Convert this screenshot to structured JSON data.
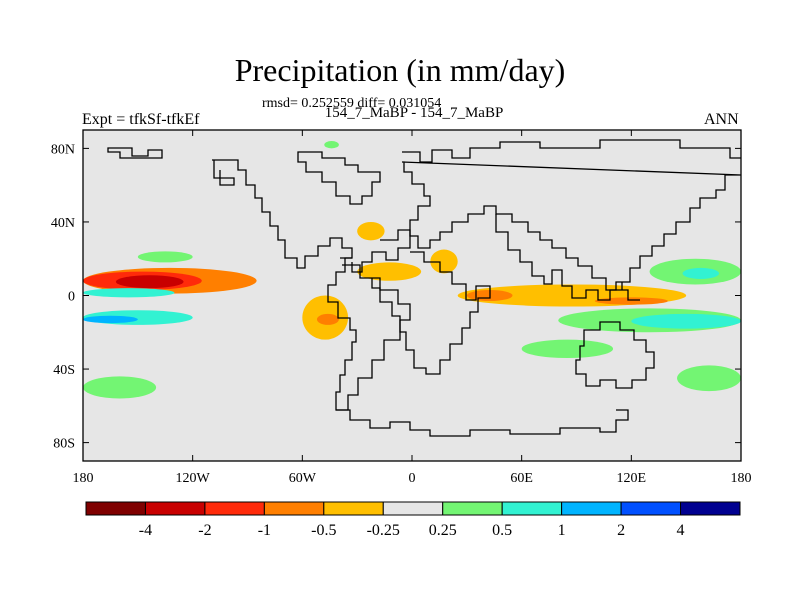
{
  "chart_data": {
    "type": "heatmap",
    "title": "Precipitation (in mm/day)",
    "subtitle": "rmsd= 0.252559 diff= 0.031054",
    "case_label": "154_7_MaBP - 154_7_MaBP",
    "experiment_label": "Expt = tfkSf-tfkEf",
    "season": "ANN",
    "rmsd": 0.252559,
    "diff": 0.031054,
    "x_ticks": [
      "180",
      "120W",
      "60W",
      "0",
      "60E",
      "120E",
      "180"
    ],
    "x_tick_values": [
      -180,
      -120,
      -60,
      0,
      60,
      120,
      180
    ],
    "y_ticks": [
      "80N",
      "40N",
      "0",
      "40S",
      "80S"
    ],
    "y_tick_values": [
      80,
      40,
      0,
      -40,
      -80
    ],
    "xlim": [
      -180,
      180
    ],
    "ylim": [
      -90,
      90
    ],
    "colorbar": {
      "levels": [
        -4,
        -2,
        -1,
        -0.5,
        -0.25,
        0.25,
        0.5,
        1,
        2,
        4
      ],
      "labels": [
        "-4",
        "-2",
        "-1",
        "-0.5",
        "-0.25",
        "0.25",
        "0.5",
        "1",
        "2",
        "4"
      ],
      "colors": [
        "#7f0000",
        "#c80000",
        "#ff2a0a",
        "#ff7f00",
        "#ffbf00",
        "#e6e6e6",
        "#73f573",
        "#32f2d2",
        "#00b4ff",
        "#0050ff",
        "#000090"
      ]
    },
    "anomalies": [
      {
        "name": "central-pacific-north",
        "lon_min": -180,
        "lon_max": -85,
        "lat_min": 1,
        "lat_max": 15,
        "value": -0.6
      },
      {
        "name": "central-pacific-north-core",
        "lon_min": -180,
        "lon_max": -115,
        "lat_min": 3,
        "lat_max": 13,
        "value": -1.5
      },
      {
        "name": "central-pacific-north-center",
        "lon_min": -162,
        "lon_max": -125,
        "lat_min": 4,
        "lat_max": 11,
        "value": -2.5
      },
      {
        "name": "pacific-equator-north",
        "lon_min": -180,
        "lon_max": -130,
        "lat_min": -1,
        "lat_max": 4,
        "value": 0.7
      },
      {
        "name": "pacific-south-band",
        "lon_min": -180,
        "lon_max": -120,
        "lat_min": -16,
        "lat_max": -8,
        "value": 0.5
      },
      {
        "name": "pacific-south-core",
        "lon_min": -180,
        "lon_max": -150,
        "lat_min": -15,
        "lat_max": -11,
        "value": 1.2
      },
      {
        "name": "south-america",
        "lon_min": -60,
        "lon_max": -35,
        "lat_min": -24,
        "lat_max": 0,
        "value": -0.4
      },
      {
        "name": "south-america-core",
        "lon_min": -52,
        "lon_max": -40,
        "lat_min": -16,
        "lat_max": -10,
        "value": -0.8
      },
      {
        "name": "west-africa",
        "lon_min": -30,
        "lon_max": 5,
        "lat_min": 8,
        "lat_max": 18,
        "value": -0.4
      },
      {
        "name": "north-africa-east",
        "lon_min": 10,
        "lon_max": 25,
        "lat_min": 12,
        "lat_max": 25,
        "value": -0.4
      },
      {
        "name": "indian-ocean-equator",
        "lon_min": 25,
        "lon_max": 150,
        "lat_min": -6,
        "lat_max": 6,
        "value": -0.4
      },
      {
        "name": "indian-ocean-core",
        "lon_min": 30,
        "lon_max": 55,
        "lat_min": -3,
        "lat_max": 3,
        "value": -0.8
      },
      {
        "name": "maritime-continent-core",
        "lon_min": 100,
        "lon_max": 140,
        "lat_min": -5,
        "lat_max": -1,
        "value": -0.8
      },
      {
        "name": "south-indian-ocean",
        "lon_min": 80,
        "lon_max": 180,
        "lat_min": -20,
        "lat_max": -7,
        "value": 0.4
      },
      {
        "name": "south-pacific-west",
        "lon_min": 120,
        "lon_max": 180,
        "lat_min": -18,
        "lat_max": -10,
        "value": 0.8
      },
      {
        "name": "west-pacific-north",
        "lon_min": 130,
        "lon_max": 180,
        "lat_min": 6,
        "lat_max": 20,
        "value": 0.4
      },
      {
        "name": "west-pacific-north-core",
        "lon_min": 148,
        "lon_max": 168,
        "lat_min": 9,
        "lat_max": 15,
        "value": 0.8
      },
      {
        "name": "north-pacific-east",
        "lon_min": -150,
        "lon_max": -120,
        "lat_min": 18,
        "lat_max": 24,
        "value": 0.3
      },
      {
        "name": "arctic-east",
        "lon_min": -48,
        "lon_max": -40,
        "lat_min": 80,
        "lat_max": 84,
        "value": 0.3
      },
      {
        "name": "north-atlantic",
        "lon_min": -30,
        "lon_max": -15,
        "lat_min": 30,
        "lat_max": 40,
        "value": -0.4
      },
      {
        "name": "southern-ocean-west",
        "lon_min": -180,
        "lon_max": -140,
        "lat_min": -56,
        "lat_max": -44,
        "value": 0.3
      },
      {
        "name": "southern-ocean-indian",
        "lon_min": 60,
        "lon_max": 110,
        "lat_min": -34,
        "lat_max": -24,
        "value": 0.3
      },
      {
        "name": "southern-ocean-east",
        "lon_min": 145,
        "lon_max": 180,
        "lat_min": -52,
        "lat_max": -38,
        "value": 0.3
      }
    ]
  }
}
